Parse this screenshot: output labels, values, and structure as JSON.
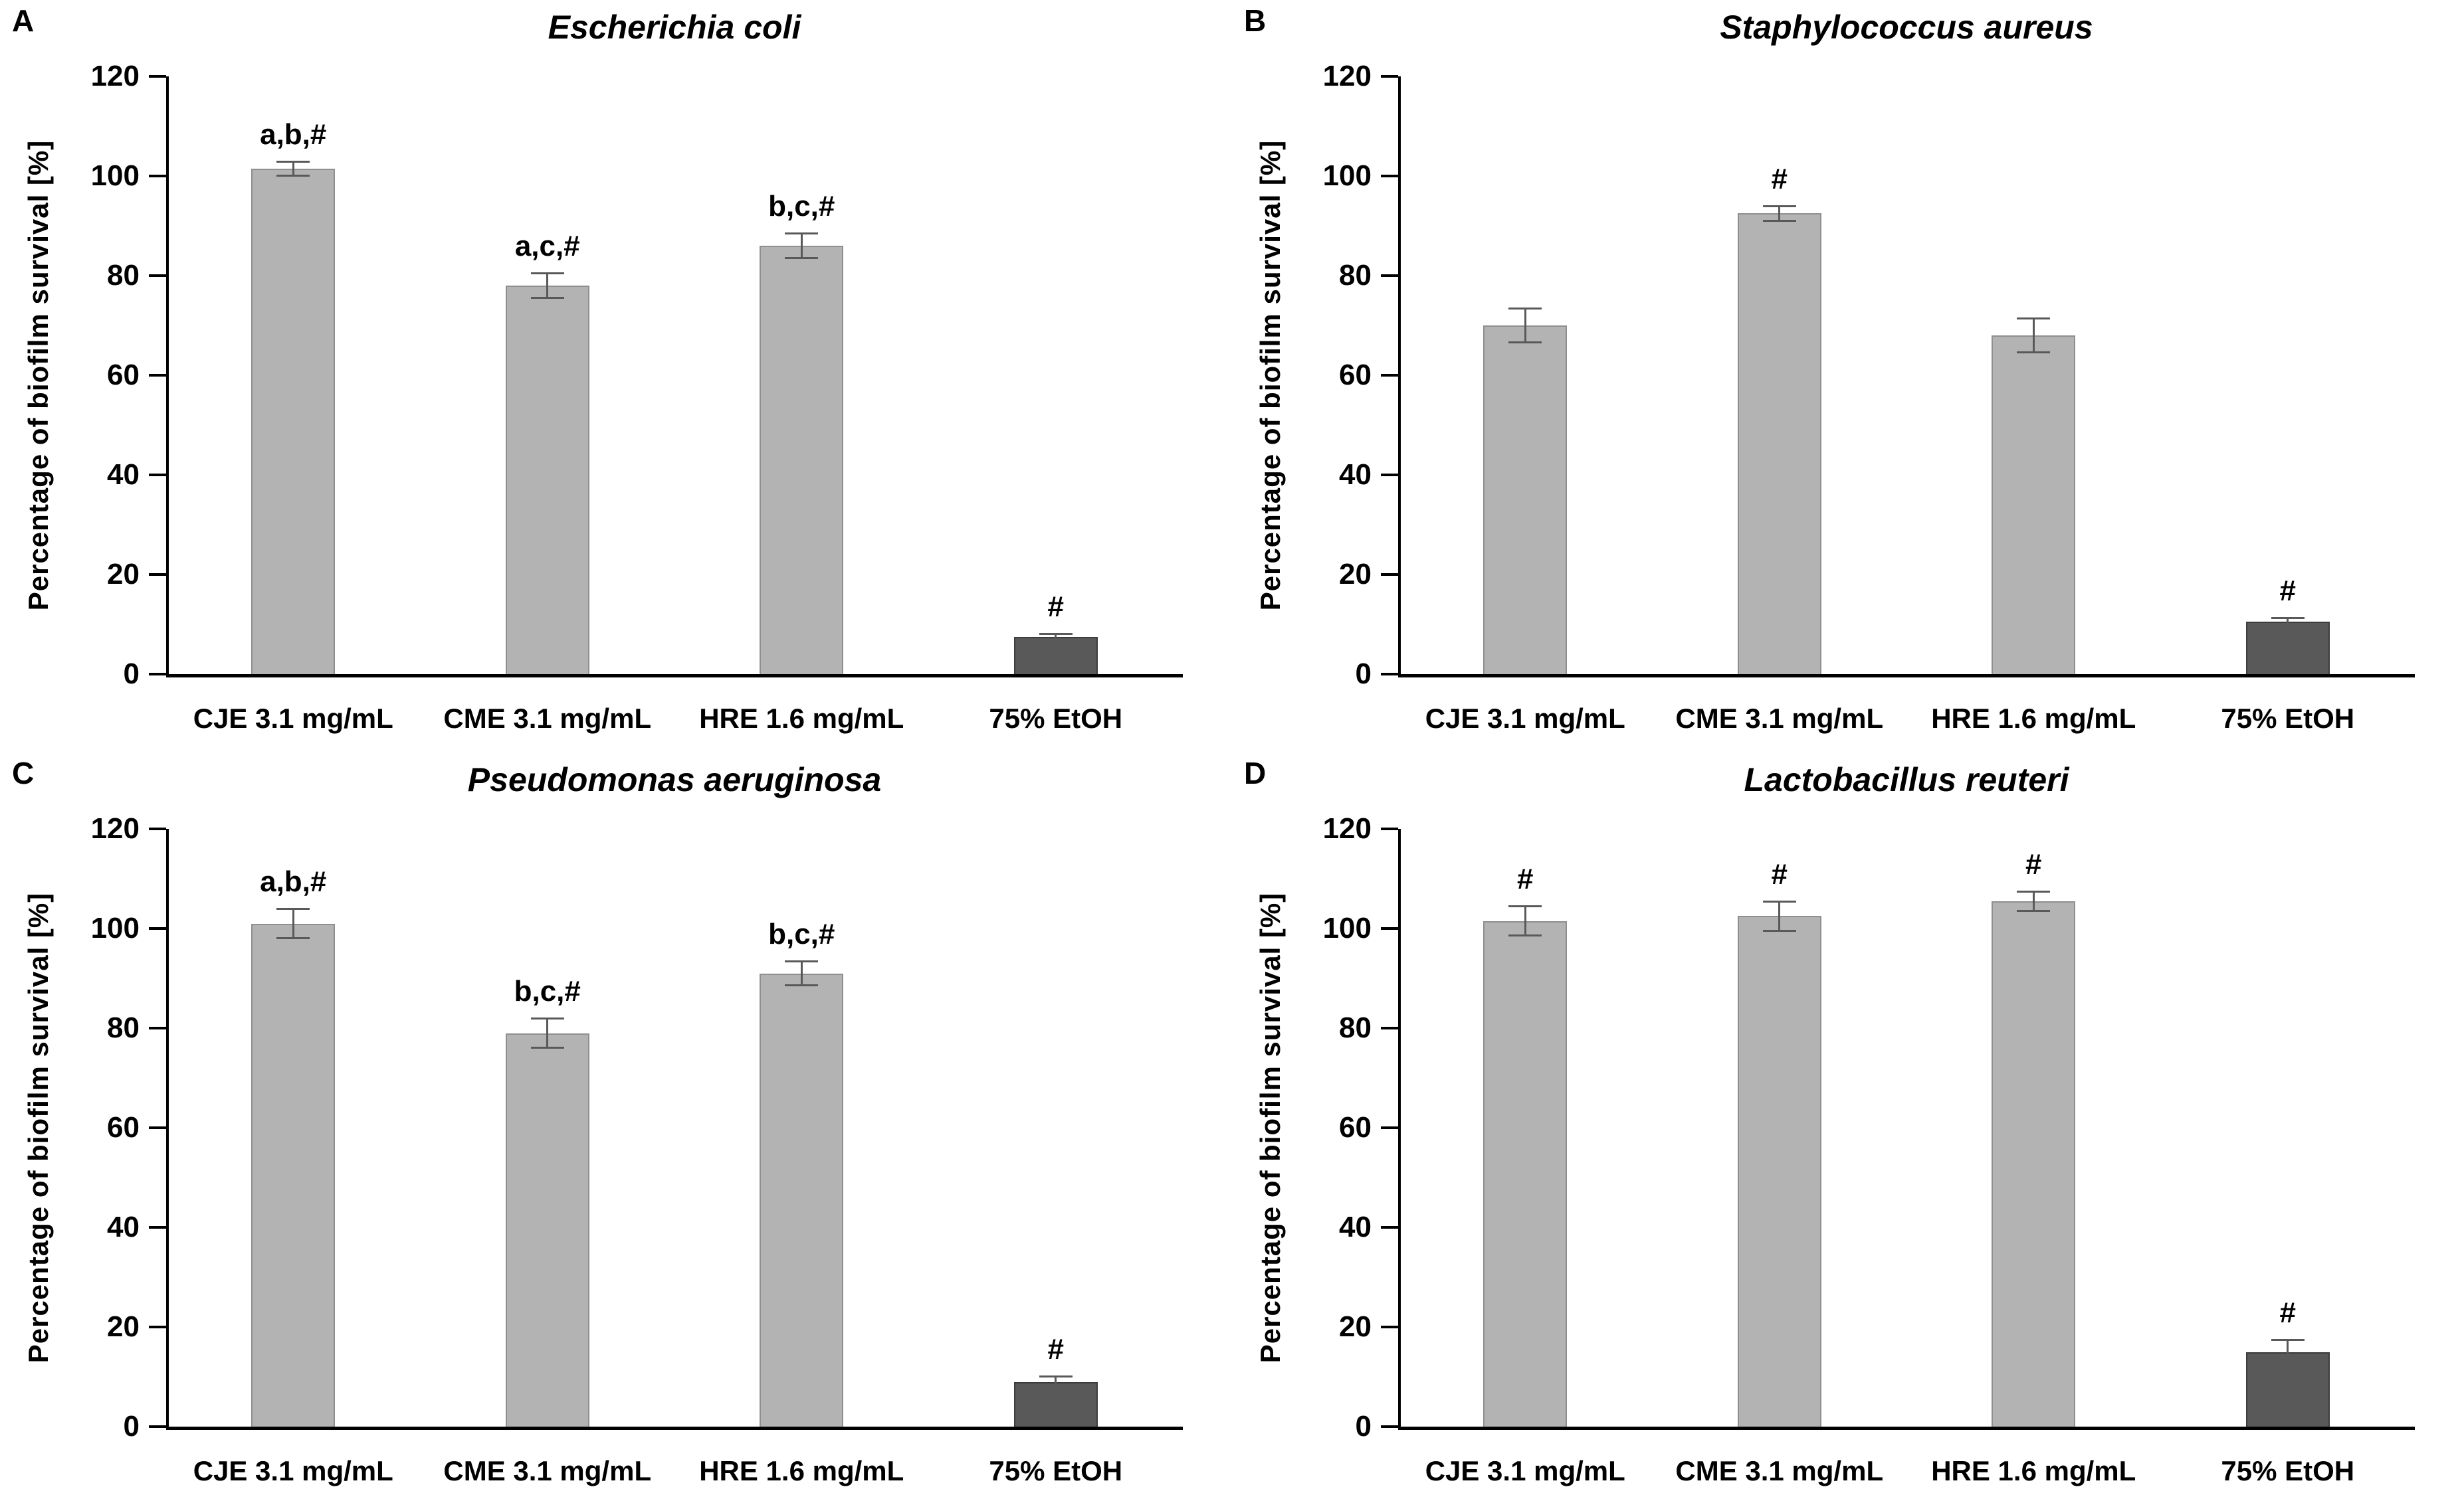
{
  "colors": {
    "bar_light": "#b3b3b3",
    "bar_light_border": "#8f8f8f",
    "bar_dark": "#595959",
    "bar_dark_border": "#3c3c3c",
    "error_bar": "#595959",
    "axis": "#000000",
    "text": "#000000",
    "background": "#ffffff"
  },
  "chart_data": [
    {
      "type": "bar",
      "panel_label": "A",
      "title": "Escherichia coli",
      "ylabel": "Percentage of biofilm survival [%]",
      "ylim": [
        0,
        120
      ],
      "yticks": [
        0,
        20,
        40,
        60,
        80,
        100,
        120
      ],
      "grid": false,
      "legend": "none",
      "categories": [
        "CJE 3.1 mg/mL",
        "CME 3.1 mg/mL",
        "HRE 1.6 mg/mL",
        "75% EtOH"
      ],
      "values": [
        101.5,
        78,
        86,
        7.5
      ],
      "errors": [
        1.5,
        2.5,
        2.5,
        0.7
      ],
      "annotations": [
        "a,b,#",
        "a,c,#",
        "b,c,#",
        "#"
      ],
      "bar_styles": [
        "light",
        "light",
        "light",
        "dark"
      ]
    },
    {
      "type": "bar",
      "panel_label": "B",
      "title": "Staphylococcus aureus",
      "ylabel": "Percentage of biofilm survival [%]",
      "ylim": [
        0,
        120
      ],
      "yticks": [
        0,
        20,
        40,
        60,
        80,
        100,
        120
      ],
      "grid": false,
      "legend": "none",
      "categories": [
        "CJE 3.1 mg/mL",
        "CME 3.1 mg/mL",
        "HRE 1.6 mg/mL",
        "75% EtOH"
      ],
      "values": [
        70,
        92.5,
        68,
        10.5
      ],
      "errors": [
        3.5,
        1.5,
        3.5,
        0.8
      ],
      "annotations": [
        "",
        "#",
        "",
        "#"
      ],
      "bar_styles": [
        "light",
        "light",
        "light",
        "dark"
      ]
    },
    {
      "type": "bar",
      "panel_label": "C",
      "title": "Pseudomonas aeruginosa",
      "ylabel": "Percentage of biofilm survival [%]",
      "ylim": [
        0,
        120
      ],
      "yticks": [
        0,
        20,
        40,
        60,
        80,
        100,
        120
      ],
      "grid": false,
      "legend": "none",
      "categories": [
        "CJE 3.1 mg/mL",
        "CME 3.1 mg/mL",
        "HRE 1.6 mg/mL",
        "75% EtOH"
      ],
      "values": [
        101,
        79,
        91,
        9
      ],
      "errors": [
        3,
        3,
        2.5,
        1.2
      ],
      "annotations": [
        "a,b,#",
        "b,c,#",
        "b,c,#",
        "#"
      ],
      "bar_styles": [
        "light",
        "light",
        "light",
        "dark"
      ]
    },
    {
      "type": "bar",
      "panel_label": "D",
      "title": "Lactobacillus reuteri",
      "ylabel": "Percentage of biofilm survival [%]",
      "ylim": [
        0,
        120
      ],
      "yticks": [
        0,
        20,
        40,
        60,
        80,
        100,
        120
      ],
      "grid": false,
      "legend": "none",
      "categories": [
        "CJE 3.1 mg/mL",
        "CME 3.1 mg/mL",
        "HRE 1.6 mg/mL",
        "75% EtOH"
      ],
      "values": [
        101.5,
        102.5,
        105.5,
        15
      ],
      "errors": [
        3,
        3,
        2,
        2.5
      ],
      "annotations": [
        "#",
        "#",
        "#",
        "#"
      ],
      "bar_styles": [
        "light",
        "light",
        "light",
        "dark"
      ]
    }
  ]
}
